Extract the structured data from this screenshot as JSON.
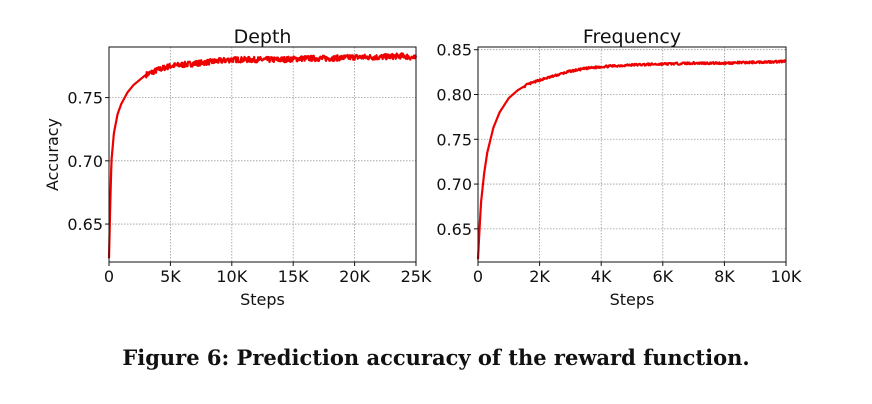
{
  "caption": "Figure 6: Prediction accuracy of the reward function.",
  "chart_data": [
    {
      "type": "line",
      "title": "Depth",
      "xlabel": "Steps",
      "ylabel": "Accuracy",
      "xlim": [
        0,
        25000
      ],
      "ylim": [
        0.62,
        0.79
      ],
      "xticks": [
        0,
        5000,
        10000,
        15000,
        20000,
        25000
      ],
      "xtick_labels": [
        "0",
        "5K",
        "10K",
        "15K",
        "20K",
        "25K"
      ],
      "yticks": [
        0.65,
        0.7,
        0.75
      ],
      "ytick_labels": [
        "0.65",
        "0.70",
        "0.75"
      ],
      "grid": true,
      "color": "#ee0000",
      "series": [
        {
          "x": [
            0,
            100,
            200,
            400,
            700,
            1000,
            1500,
            2000,
            2500,
            3000,
            3500,
            4000,
            5000,
            6000,
            7000,
            8000,
            9000,
            10000,
            12000,
            14000,
            16000,
            18000,
            20000,
            22000,
            24000,
            25000
          ],
          "values": [
            0.623,
            0.665,
            0.7,
            0.722,
            0.737,
            0.745,
            0.754,
            0.76,
            0.764,
            0.768,
            0.77,
            0.772,
            0.775,
            0.776,
            0.777,
            0.778,
            0.779,
            0.78,
            0.78,
            0.78,
            0.781,
            0.781,
            0.782,
            0.782,
            0.783,
            0.781
          ]
        }
      ]
    },
    {
      "type": "line",
      "title": "Frequency",
      "xlabel": "Steps",
      "ylabel": "",
      "xlim": [
        0,
        10000
      ],
      "ylim": [
        0.613,
        0.853
      ],
      "xticks": [
        0,
        2000,
        4000,
        6000,
        8000,
        10000
      ],
      "xtick_labels": [
        "0",
        "2K",
        "4K",
        "6K",
        "8K",
        "10K"
      ],
      "yticks": [
        0.65,
        0.7,
        0.75,
        0.8,
        0.85
      ],
      "ytick_labels": [
        "0.65",
        "0.70",
        "0.75",
        "0.80",
        "0.85"
      ],
      "grid": true,
      "color": "#ee0000",
      "series": [
        {
          "x": [
            0,
            50,
            100,
            200,
            300,
            500,
            700,
            1000,
            1300,
            1600,
            2000,
            2500,
            3000,
            3500,
            4000,
            5000,
            6000,
            7000,
            8000,
            9000,
            10000
          ],
          "values": [
            0.616,
            0.65,
            0.68,
            0.712,
            0.735,
            0.763,
            0.78,
            0.796,
            0.805,
            0.811,
            0.816,
            0.821,
            0.826,
            0.829,
            0.831,
            0.833,
            0.834,
            0.835,
            0.835,
            0.836,
            0.837
          ]
        }
      ]
    }
  ]
}
